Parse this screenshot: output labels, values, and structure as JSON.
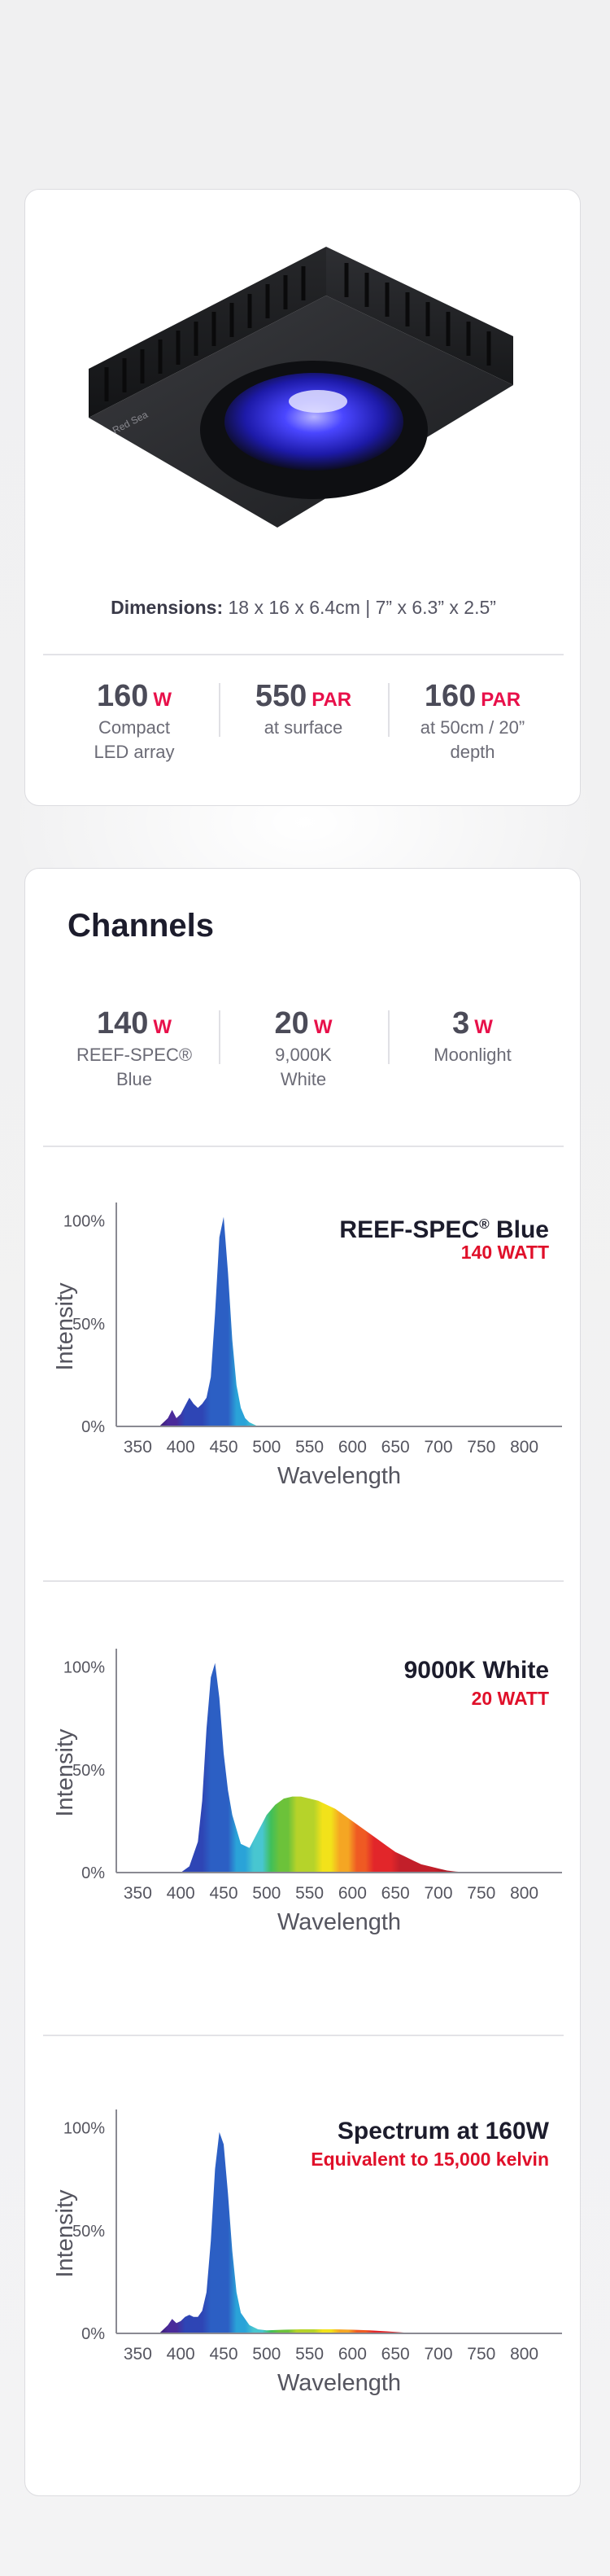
{
  "product": {
    "image_icon": "led-fixture-image",
    "dimensions_label": "Dimensions:",
    "dimensions_value": "18 x 16 x 6.4cm | 7” x 6.3” x 2.5”",
    "stats": [
      {
        "value": "160",
        "unit": "W",
        "line1": "Compact",
        "line2": "LED array"
      },
      {
        "value": "550",
        "unit": "PAR",
        "line1": "at surface",
        "line2": ""
      },
      {
        "value": "160",
        "unit": "PAR",
        "line1": "at 50cm / 20”",
        "line2": "depth"
      }
    ]
  },
  "channels": {
    "title": "Channels",
    "stats": [
      {
        "value": "140",
        "unit": "W",
        "line1": "REEF-SPEC®",
        "line2": "Blue"
      },
      {
        "value": "20",
        "unit": "W",
        "line1": "9,000K",
        "line2": "White"
      },
      {
        "value": "3",
        "unit": "W",
        "line1": "Moonlight",
        "line2": ""
      }
    ]
  },
  "colors": {
    "accent": "#e8104a",
    "watt_red": "#e0102a",
    "heading": "#1c1c2c"
  },
  "chart_data": [
    {
      "type": "area",
      "title": "REEF-SPEC® Blue",
      "subtitle": "140 WATT",
      "xlabel": "Wavelength",
      "ylabel": "Intensity",
      "x_ticks": [
        "350",
        "400",
        "450",
        "500",
        "550",
        "600",
        "650",
        "700",
        "750",
        "800"
      ],
      "y_ticks": [
        "0%",
        "50%",
        "100%"
      ],
      "xlim": [
        325,
        825
      ],
      "ylim": [
        0,
        105
      ],
      "x": [
        375,
        385,
        390,
        395,
        400,
        405,
        410,
        415,
        420,
        425,
        430,
        435,
        440,
        445,
        450,
        455,
        460,
        465,
        470,
        475,
        480,
        485,
        490,
        500
      ],
      "y": [
        0,
        4,
        8,
        4,
        6,
        10,
        14,
        11,
        9,
        11,
        14,
        24,
        55,
        92,
        102,
        75,
        42,
        20,
        9,
        4,
        2,
        1,
        0,
        0
      ]
    },
    {
      "type": "area",
      "title": "9000K White",
      "subtitle": "20 WATT",
      "xlabel": "Wavelength",
      "ylabel": "Intensity",
      "x_ticks": [
        "350",
        "400",
        "450",
        "500",
        "550",
        "600",
        "650",
        "700",
        "750",
        "800"
      ],
      "y_ticks": [
        "0%",
        "50%",
        "100%"
      ],
      "xlim": [
        325,
        825
      ],
      "ylim": [
        0,
        105
      ],
      "x": [
        400,
        410,
        420,
        425,
        430,
        435,
        440,
        445,
        450,
        455,
        460,
        470,
        480,
        490,
        500,
        510,
        520,
        530,
        540,
        550,
        560,
        570,
        580,
        590,
        600,
        610,
        620,
        630,
        640,
        650,
        660,
        670,
        680,
        690,
        700,
        710,
        720,
        730,
        740
      ],
      "y": [
        0,
        3,
        15,
        35,
        70,
        95,
        102,
        85,
        58,
        40,
        28,
        14,
        12,
        20,
        28,
        33,
        36,
        37,
        37,
        36,
        35,
        33,
        31,
        28,
        25,
        22,
        19,
        16,
        13,
        10,
        8,
        6,
        4,
        3,
        2,
        1,
        0.5,
        0.2,
        0
      ]
    },
    {
      "type": "area",
      "title": "Spectrum at 160W",
      "subtitle": "Equivalent to 15,000 kelvin",
      "xlabel": "Wavelength",
      "ylabel": "Intensity",
      "x_ticks": [
        "350",
        "400",
        "450",
        "500",
        "550",
        "600",
        "650",
        "700",
        "750",
        "800"
      ],
      "y_ticks": [
        "0%",
        "50%",
        "100%"
      ],
      "xlim": [
        325,
        825
      ],
      "ylim": [
        0,
        105
      ],
      "x": [
        375,
        385,
        390,
        395,
        400,
        405,
        410,
        415,
        420,
        425,
        430,
        435,
        440,
        445,
        450,
        455,
        460,
        465,
        470,
        480,
        490,
        500,
        520,
        540,
        560,
        580,
        600,
        620,
        640,
        660,
        680
      ],
      "y": [
        0,
        4,
        7,
        5,
        6,
        8,
        9,
        8,
        8,
        11,
        20,
        45,
        80,
        98,
        92,
        68,
        40,
        20,
        10,
        4,
        2,
        1.5,
        1.8,
        2,
        2,
        2,
        1.8,
        1.5,
        1,
        0.4,
        0
      ]
    }
  ]
}
